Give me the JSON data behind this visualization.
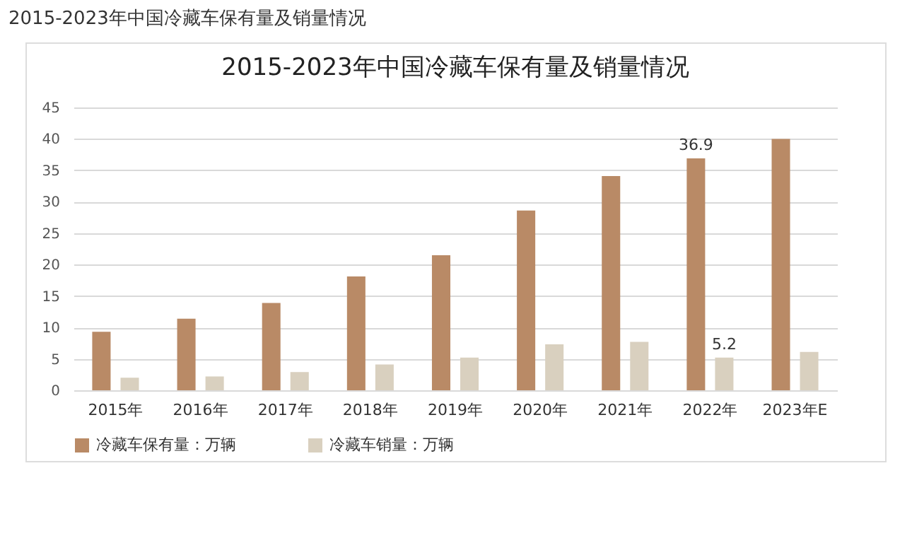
{
  "chart_data": {
    "type": "bar",
    "title": "2015-2023年中国冷藏车保有量及销量情况",
    "annotations": [
      "2015-2023年中国冷藏车保有量及销量情况"
    ],
    "categories": [
      "2015年",
      "2016年",
      "2017年",
      "2018年",
      "2019年",
      "2020年",
      "2021年",
      "2022年",
      "2023年E"
    ],
    "series": [
      {
        "name": "冷藏车保有量：万辆",
        "color": "#b98a66",
        "values": [
          9.3,
          11.4,
          13.9,
          18.1,
          21.5,
          28.6,
          34.1,
          36.9,
          40.0
        ],
        "value_labels": [
          null,
          null,
          null,
          null,
          null,
          null,
          null,
          "36.9",
          null
        ]
      },
      {
        "name": "冷藏车销量：万辆",
        "color": "#d9d0bf",
        "values": [
          2.0,
          2.2,
          2.9,
          4.1,
          5.2,
          7.3,
          7.7,
          5.2,
          6.1
        ],
        "value_labels": [
          null,
          null,
          null,
          null,
          null,
          null,
          null,
          "5.2",
          null
        ]
      }
    ],
    "ylim": [
      0,
      45
    ],
    "yticks": [
      0,
      5,
      10,
      15,
      20,
      25,
      30,
      35,
      40,
      45
    ],
    "grid": "y",
    "legend": "bottom"
  }
}
